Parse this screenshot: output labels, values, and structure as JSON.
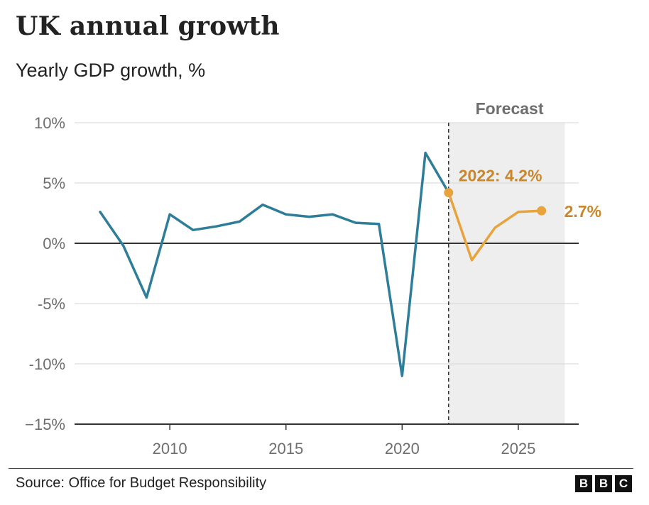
{
  "title": "UK annual growth",
  "subtitle": "Yearly GDP growth, %",
  "source": "Source: Office for Budget Responsibility",
  "logo": [
    "B",
    "B",
    "C"
  ],
  "forecast_label": "Forecast",
  "annotations": {
    "start": "2022: 4.2%",
    "end": "2.7%"
  },
  "colors": {
    "historical": "#2e7d99",
    "forecast": "#e8a33c",
    "annotation": "#c9872a",
    "forecast_shade": "#eeeeee"
  },
  "chart_data": {
    "type": "line",
    "ylabel": "",
    "xlabel": "",
    "ylim": [
      -15,
      10
    ],
    "xlim": [
      2005.9,
      2027.6
    ],
    "y_ticks": [
      {
        "value": 10,
        "label": "10%"
      },
      {
        "value": 5,
        "label": "5%"
      },
      {
        "value": 0,
        "label": "0%"
      },
      {
        "value": -5,
        "label": "-5%"
      },
      {
        "value": -10,
        "label": "-10%"
      },
      {
        "value": -15,
        "label": "−15%"
      }
    ],
    "x_ticks": [
      {
        "value": 2010,
        "label": "2010"
      },
      {
        "value": 2015,
        "label": "2015"
      },
      {
        "value": 2020,
        "label": "2020"
      },
      {
        "value": 2025,
        "label": "2025"
      }
    ],
    "forecast_start": 2022,
    "forecast_end": 2027,
    "series": [
      {
        "x": [
          2007,
          2008,
          2009,
          2010,
          2011,
          2012,
          2013,
          2014,
          2015,
          2016,
          2017,
          2018,
          2019,
          2020,
          2021,
          2022
        ],
        "values": [
          2.6,
          -0.2,
          -4.5,
          2.4,
          1.1,
          1.4,
          1.8,
          3.2,
          2.4,
          2.2,
          2.4,
          1.7,
          1.6,
          -11.0,
          7.5,
          4.2
        ]
      },
      {
        "x": [
          2022,
          2023,
          2024,
          2025,
          2026
        ],
        "values": [
          4.2,
          -1.4,
          1.3,
          2.6,
          2.7
        ]
      }
    ]
  }
}
